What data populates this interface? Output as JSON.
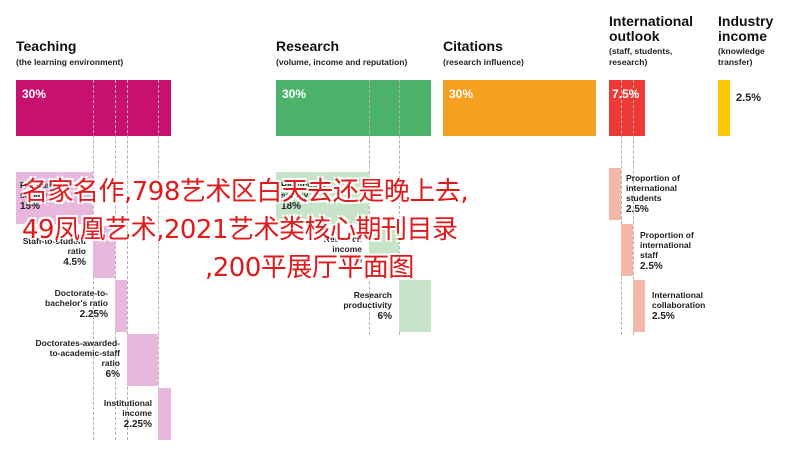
{
  "colors": {
    "teaching": "#c8106e",
    "teaching_light": "#e8b7dc",
    "research": "#4cb26a",
    "research_light": "#c8e4c8",
    "citations": "#f5a020",
    "international": "#ee3a35",
    "international_light": "#f3b8a8",
    "industry": "#f8c800",
    "overlay_text": "#e0191b"
  },
  "categories": {
    "teaching": {
      "title": "Teaching",
      "subtitle": "(the learning environment)",
      "value": "30%"
    },
    "research": {
      "title": "Research",
      "subtitle": "(volume, income and reputation)",
      "value": "30%"
    },
    "citations": {
      "title": "Citations",
      "subtitle": "(research influence)",
      "value": "30%"
    },
    "international": {
      "title": "International outlook",
      "title_line1": "International",
      "title_line2": "outlook",
      "subtitle_line1": "(staff, students,",
      "subtitle_line2": "research)",
      "value": "7.5%"
    },
    "industry": {
      "title_line1": "Industry",
      "title_line2": "income",
      "subtitle_line1": "(knowledge",
      "subtitle_line2": "transfer)",
      "value": "2.5%"
    }
  },
  "teaching_sub": [
    {
      "line1": "Reputation",
      "line2": "survey",
      "value": "15%"
    },
    {
      "line1": "Staff-to-student",
      "line2": "ratio",
      "value": "4.5%"
    },
    {
      "line1": "Doctorate-to-",
      "line2": "bachelor's ratio",
      "value": "2.25%"
    },
    {
      "line1": "Doctorates-awarded-",
      "line2": "to-academic-staff",
      "line3": "ratio",
      "value": "6%"
    },
    {
      "line1": "Institutional",
      "line2": "income",
      "value": "2.25%"
    }
  ],
  "research_sub": [
    {
      "line1": "Reputation",
      "line2": "survey",
      "value": "18%"
    },
    {
      "line1": "Research",
      "line2": "income",
      "value": "6%"
    },
    {
      "line1": "Research",
      "line2": "productivity",
      "value": "6%"
    }
  ],
  "international_sub": [
    {
      "line1": "Proportion of",
      "line2": "international",
      "line3": "students",
      "value": "2.5%"
    },
    {
      "line1": "Proportion of",
      "line2": "international",
      "line3": "staff",
      "value": "2.5%"
    },
    {
      "line1": "International",
      "line2": "collaboration",
      "value": "2.5%"
    }
  ],
  "overlay": {
    "line1": "名家名作,798艺术区白天去还是晚上去,",
    "line2": "49凤凰艺术,2021艺术类核心期刊目录",
    "line3": ",200平展厅平面图"
  }
}
